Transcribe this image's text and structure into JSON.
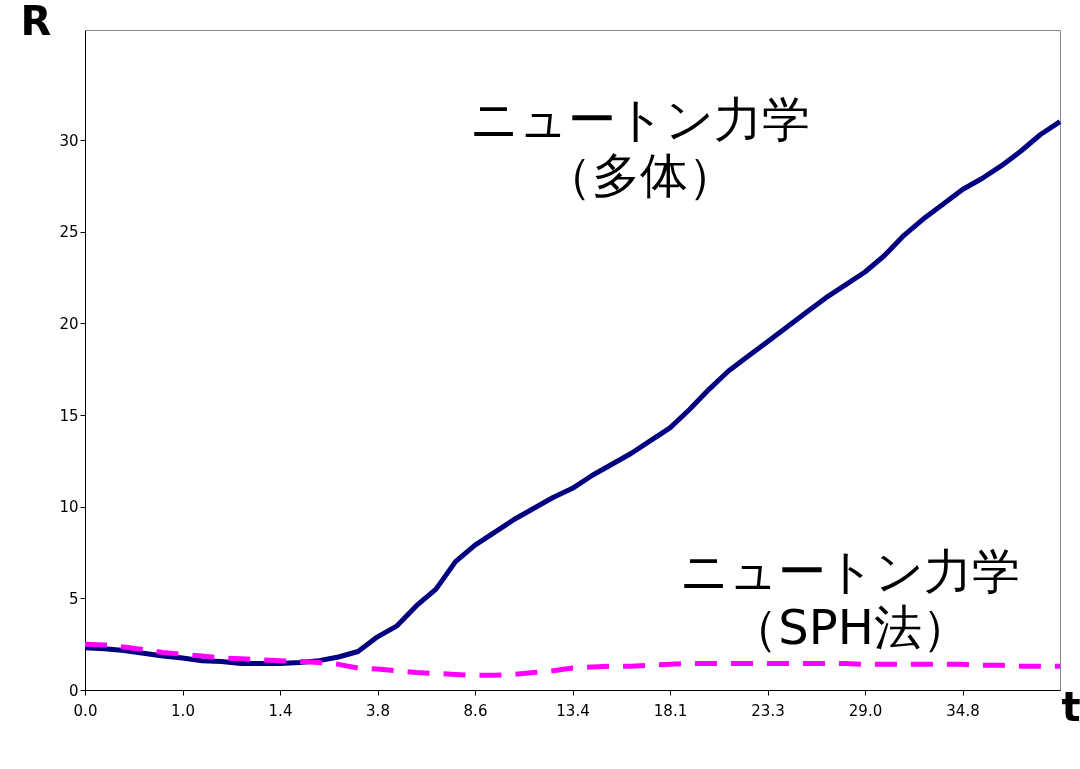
{
  "chart_data": {
    "type": "line",
    "xlabel": "t",
    "ylabel": "R",
    "categories": [
      "0.0",
      null,
      null,
      null,
      null,
      "1.0",
      null,
      null,
      null,
      null,
      "1.4",
      null,
      null,
      null,
      null,
      "3.8",
      null,
      null,
      null,
      null,
      "8.6",
      null,
      null,
      null,
      null,
      "13.4",
      null,
      null,
      null,
      null,
      "18.1",
      null,
      null,
      null,
      null,
      "23.3",
      null,
      null,
      null,
      null,
      "29.0",
      null,
      null,
      null,
      null,
      "34.8",
      null,
      null,
      null,
      null,
      null
    ],
    "ylim": [
      0,
      36
    ],
    "yticks": [
      0,
      5,
      10,
      15,
      20,
      25,
      30
    ],
    "grid": false,
    "legend": false,
    "marker": "none",
    "series": [
      {
        "name": "ニュートン力学（多体）",
        "color": "#000080",
        "line_style": "solid",
        "values": [
          2.3,
          2.25,
          2.15,
          2.0,
          1.85,
          1.75,
          1.6,
          1.55,
          1.45,
          1.45,
          1.45,
          1.5,
          1.6,
          1.8,
          2.1,
          2.9,
          3.5,
          4.6,
          5.5,
          7.0,
          7.9,
          8.6,
          9.3,
          9.9,
          10.5,
          11.0,
          11.7,
          12.3,
          12.9,
          13.6,
          14.3,
          15.3,
          16.4,
          17.4,
          18.2,
          19.0,
          19.8,
          20.6,
          21.4,
          22.1,
          22.8,
          23.7,
          24.8,
          25.7,
          26.5,
          27.3,
          27.9,
          28.6,
          29.4,
          30.3,
          31.0
        ]
      },
      {
        "name": "ニュートン力学（SPH法）",
        "color": "#ff00ff",
        "line_style": "dashed",
        "values": [
          2.5,
          2.45,
          2.35,
          2.2,
          2.05,
          1.95,
          1.85,
          1.75,
          1.7,
          1.65,
          1.6,
          1.55,
          1.5,
          1.4,
          1.2,
          1.15,
          1.05,
          0.95,
          0.9,
          0.85,
          0.8,
          0.8,
          0.85,
          0.95,
          1.05,
          1.2,
          1.25,
          1.3,
          1.3,
          1.35,
          1.4,
          1.45,
          1.45,
          1.45,
          1.45,
          1.45,
          1.45,
          1.45,
          1.45,
          1.45,
          1.4,
          1.4,
          1.4,
          1.4,
          1.4,
          1.4,
          1.35,
          1.35,
          1.3,
          1.3,
          1.3
        ]
      }
    ]
  }
}
